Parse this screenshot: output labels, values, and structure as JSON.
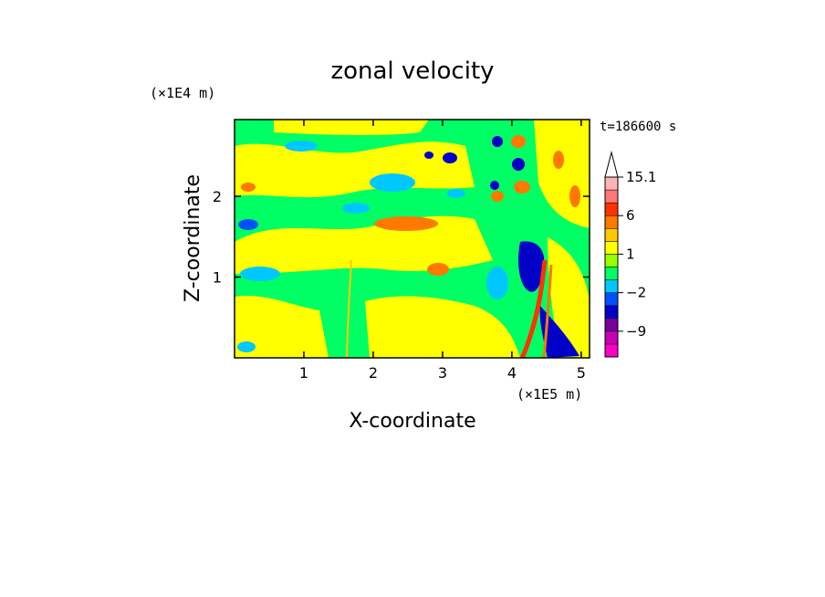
{
  "chart_data": {
    "type": "heatmap",
    "title": "zonal velocity",
    "xlabel": "X-coordinate",
    "ylabel": "Z-coordinate",
    "x_unit": "(×1E5 m)",
    "y_unit": "(×1E4 m)",
    "time_label": "t=186600 s",
    "xlim": [
      0,
      5.12
    ],
    "ylim": [
      0,
      2.95
    ],
    "x_ticks": [
      {
        "value": 1,
        "label": "1"
      },
      {
        "value": 2,
        "label": "2"
      },
      {
        "value": 3,
        "label": "3"
      },
      {
        "value": 4,
        "label": "4"
      },
      {
        "value": 5,
        "label": "5"
      }
    ],
    "y_ticks": [
      {
        "value": 1,
        "label": "1"
      },
      {
        "value": 2,
        "label": "2"
      }
    ],
    "colorbar": {
      "levels": [
        -15,
        -12,
        -9,
        -6,
        -4,
        -2,
        -1,
        0,
        1,
        2,
        4,
        6,
        9,
        12,
        15.1
      ],
      "colors": [
        "#ff00c8",
        "#c800b4",
        "#78009b",
        "#0000c8",
        "#0050ff",
        "#00c8ff",
        "#00ff64",
        "#96ff00",
        "#ffff00",
        "#ffc800",
        "#ff7800",
        "#ff3200",
        "#ff7878",
        "#ffb4b4"
      ],
      "labels": [
        {
          "value": 15.1,
          "label": "15.1"
        },
        {
          "value": 6,
          "label": "6"
        },
        {
          "value": 1,
          "label": "1"
        },
        {
          "value": -2,
          "label": "−2"
        },
        {
          "value": -9,
          "label": "−9"
        }
      ]
    }
  }
}
